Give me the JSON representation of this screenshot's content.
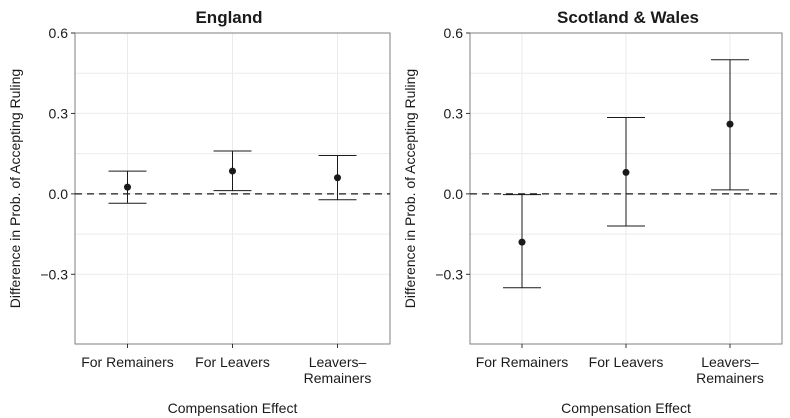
{
  "chart_data": [
    {
      "type": "scatter",
      "title": "England",
      "xlabel": "Compensation Effect",
      "ylabel": "Difference in Prob. of Accepting Ruling",
      "categories": [
        "For Remainers",
        "For Leavers",
        "Leavers–Remainers"
      ],
      "category_lines": [
        [
          "For Remainers"
        ],
        [
          "For Leavers"
        ],
        [
          "Leavers–",
          "Remainers"
        ]
      ],
      "estimates": [
        0.025,
        0.085,
        0.06
      ],
      "lower": [
        -0.035,
        0.012,
        -0.022
      ],
      "upper": [
        0.085,
        0.16,
        0.143
      ],
      "yticks": [
        0.6,
        0.3,
        0.0,
        -0.3
      ],
      "ytick_labels": [
        "0.6",
        "0.3",
        "0.0",
        "−0.3"
      ],
      "ylim": [
        -0.56,
        0.6
      ],
      "reference_line": 0.0,
      "grid": true
    },
    {
      "type": "scatter",
      "title": "Scotland & Wales",
      "xlabel": "Compensation Effect",
      "ylabel": "Difference in Prob. of Accepting Ruling",
      "categories": [
        "For Remainers",
        "For Leavers",
        "Leavers–Remainers"
      ],
      "category_lines": [
        [
          "For Remainers"
        ],
        [
          "For Leavers"
        ],
        [
          "Leavers–",
          "Remainers"
        ]
      ],
      "estimates": [
        -0.18,
        0.08,
        0.26
      ],
      "lower": [
        -0.35,
        -0.12,
        0.015
      ],
      "upper": [
        -0.003,
        0.285,
        0.5
      ],
      "yticks": [
        0.6,
        0.3,
        0.0,
        -0.3
      ],
      "ytick_labels": [
        "0.6",
        "0.3",
        "0.0",
        "−0.3"
      ],
      "ylim": [
        -0.56,
        0.6
      ],
      "reference_line": 0.0,
      "grid": true
    }
  ]
}
